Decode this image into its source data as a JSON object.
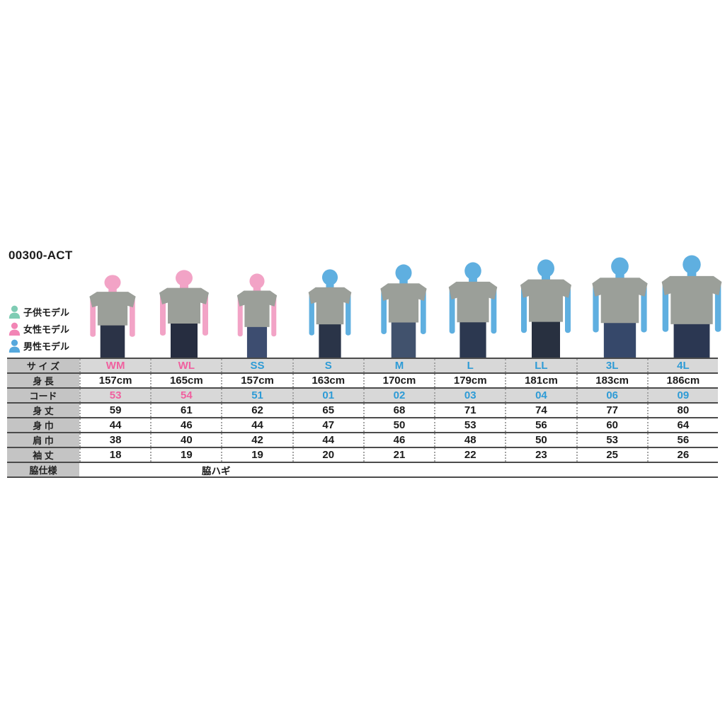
{
  "page": {
    "title": "00300-ACT"
  },
  "legend": {
    "items": [
      {
        "label": "子供モデル",
        "color": "#7fccb4"
      },
      {
        "label": "女性モデル",
        "color": "#f285b5"
      },
      {
        "label": "男性モデル",
        "color": "#55a8dd"
      }
    ]
  },
  "models": [
    {
      "size": "WM",
      "model": "female"
    },
    {
      "size": "WL",
      "model": "female"
    },
    {
      "size": "SS",
      "model": "female"
    },
    {
      "size": "S",
      "model": "male"
    },
    {
      "size": "M",
      "model": "male"
    },
    {
      "size": "L",
      "model": "male"
    },
    {
      "size": "LL",
      "model": "male"
    },
    {
      "size": "3L",
      "model": "male"
    },
    {
      "size": "4L",
      "model": "male"
    }
  ],
  "colors": {
    "pink_text": "#f0609f",
    "blue_text": "#2e9bd6",
    "female_skin": "#f2a3c6",
    "male_skin": "#5fafe0",
    "shirt": "#9b9f99",
    "label_bg": "#c4c4c4",
    "shaded_bg": "#d8d8d8",
    "border": "#4b4b4b"
  },
  "table": {
    "row_labels": [
      "サ イ ズ",
      "身 長",
      "コード",
      "身 丈",
      "身 巾",
      "肩 巾",
      "袖 丈",
      "脇仕様"
    ],
    "sizes": [
      "WM",
      "WL",
      "SS",
      "S",
      "M",
      "L",
      "LL",
      "3L",
      "4L"
    ],
    "size_color_keys": [
      "pink",
      "pink",
      "blue",
      "blue",
      "blue",
      "blue",
      "blue",
      "blue",
      "blue"
    ],
    "height_values": [
      "157cm",
      "165cm",
      "157cm",
      "163cm",
      "170cm",
      "179cm",
      "181cm",
      "183cm",
      "186cm"
    ],
    "code_values": [
      "53",
      "54",
      "51",
      "01",
      "02",
      "03",
      "04",
      "06",
      "09"
    ],
    "body_length_values": [
      "59",
      "61",
      "62",
      "65",
      "68",
      "71",
      "74",
      "77",
      "80"
    ],
    "body_width_values": [
      "44",
      "46",
      "44",
      "47",
      "50",
      "53",
      "56",
      "60",
      "64"
    ],
    "shoulder_width_values": [
      "38",
      "40",
      "42",
      "44",
      "46",
      "48",
      "50",
      "53",
      "56"
    ],
    "sleeve_length_values": [
      "18",
      "19",
      "19",
      "20",
      "21",
      "22",
      "23",
      "25",
      "26"
    ],
    "side_spec_value": "脇ハギ"
  }
}
